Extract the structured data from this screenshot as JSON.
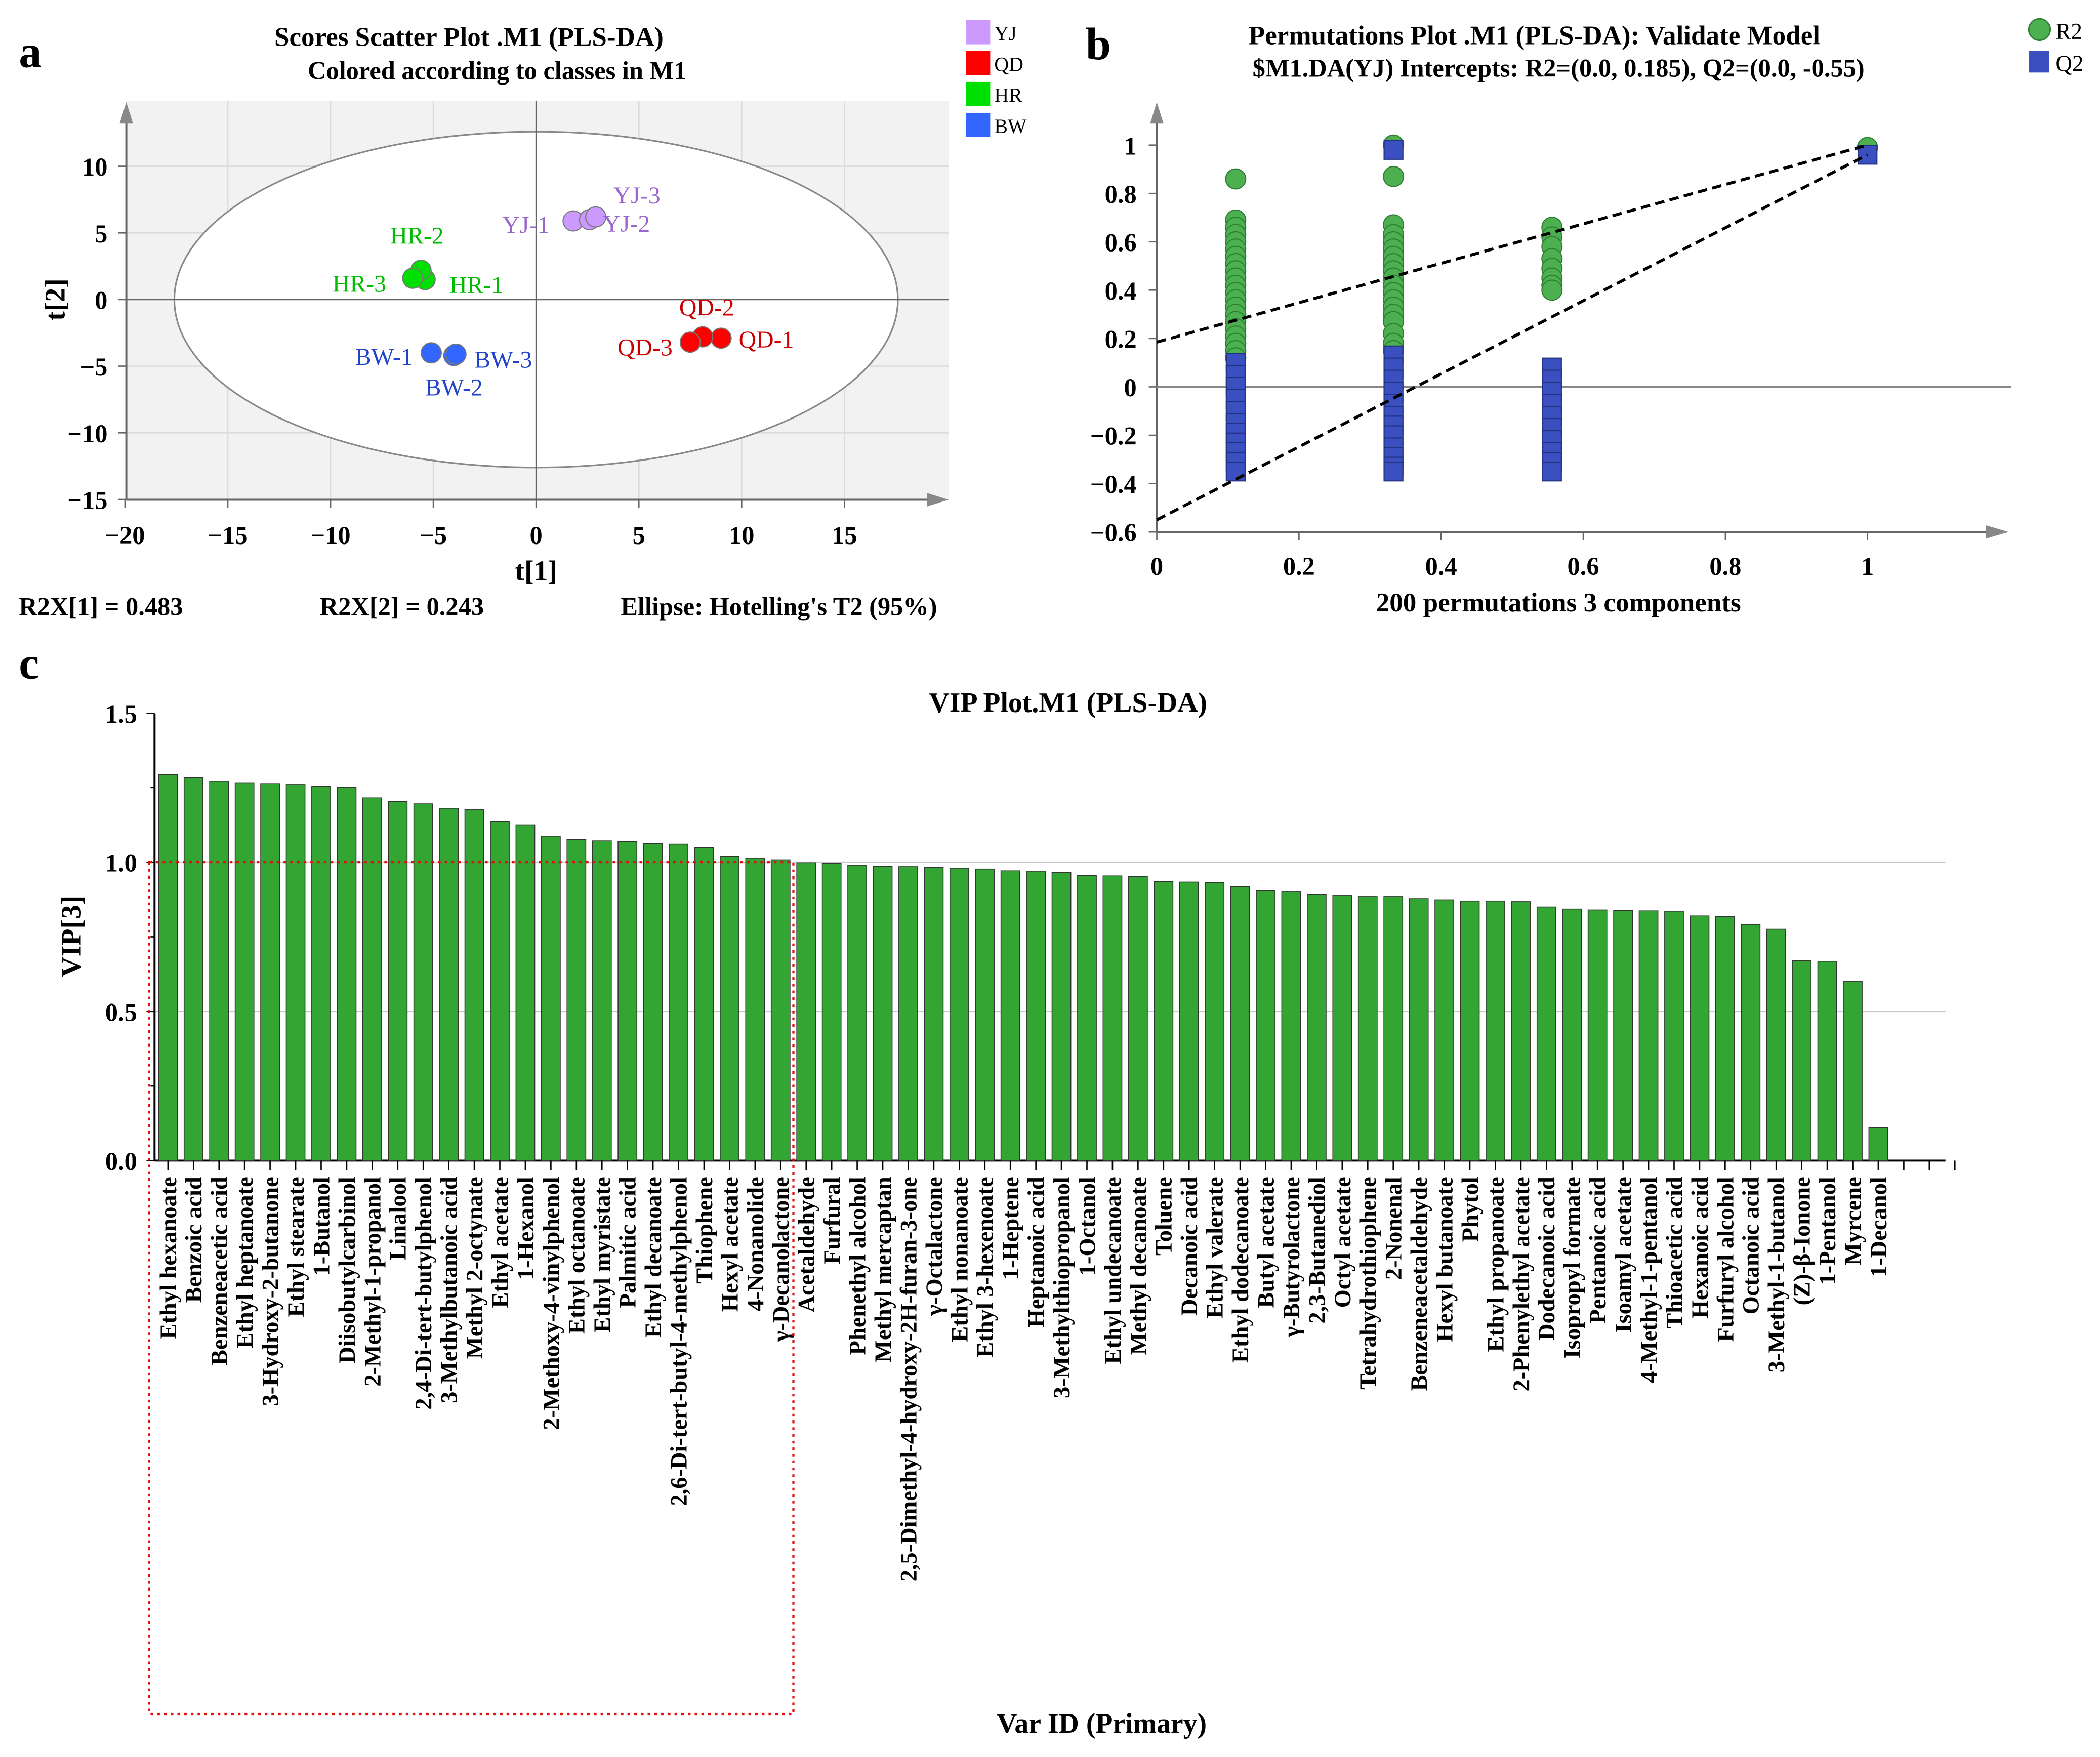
{
  "chart_data": [
    {
      "panel": "a",
      "type": "scatter",
      "title": "Scores Scatter Plot .M1 (PLS-DA)",
      "subtitle": "Colored according to classes in M1",
      "xlabel": "t[1]",
      "ylabel": "t[2]",
      "xlim": [
        -20,
        20
      ],
      "ylim": [
        -15,
        15
      ],
      "xticks": [
        -20,
        -15,
        -10,
        -5,
        0,
        5,
        10,
        15
      ],
      "yticks": [
        10,
        5,
        0,
        -5,
        -10,
        -15
      ],
      "xtick_labels": [
        "−20",
        "−15",
        "−10",
        "−5",
        "0",
        "5",
        "10",
        "15"
      ],
      "ytick_labels": [
        "10",
        "5",
        "0",
        "−5",
        "−10",
        "−15"
      ],
      "grid": true,
      "ellipse": {
        "label": "Ellipse: Hotelling's T2 (95%)",
        "rx": 17.6,
        "ry": 12.6
      },
      "footer": [
        "R2X[1] = 0.483",
        "R2X[2] = 0.243"
      ],
      "legend_position": "top-right",
      "legend": [
        {
          "name": "YJ",
          "color": "#cc99ff"
        },
        {
          "name": "QD",
          "color": "#ff0000"
        },
        {
          "name": "HR",
          "color": "#00e000"
        },
        {
          "name": "BW",
          "color": "#3366ff"
        }
      ],
      "label_colors": {
        "YJ": "#9966cc",
        "QD": "#cc0000",
        "HR": "#00bb00",
        "BW": "#2244cc"
      },
      "points": [
        {
          "label": "YJ-1",
          "cls": "YJ",
          "x": 1.8,
          "y": 5.9,
          "lx": -2.3,
          "ly": -0.3
        },
        {
          "label": "YJ-2",
          "cls": "YJ",
          "x": 2.6,
          "y": 6.0,
          "lx": 1.8,
          "ly": -0.3
        },
        {
          "label": "YJ-3",
          "cls": "YJ",
          "x": 2.9,
          "y": 6.2,
          "lx": 2.0,
          "ly": -0.4
        },
        {
          "label": "HR-1",
          "cls": "HR",
          "x": -5.4,
          "y": 1.5,
          "lx": 2.5,
          "ly": -0.4
        },
        {
          "label": "HR-2",
          "cls": "HR",
          "x": -5.6,
          "y": 2.2,
          "lx": -0.2,
          "ly": 2.6
        },
        {
          "label": "HR-3",
          "cls": "HR",
          "x": -6.0,
          "y": 1.6,
          "lx": -2.6,
          "ly": -0.4
        },
        {
          "label": "BW-1",
          "cls": "BW",
          "x": -5.1,
          "y": -4.0,
          "lx": -2.3,
          "ly": -0.3
        },
        {
          "label": "BW-2",
          "cls": "BW",
          "x": -4.0,
          "y": -4.2,
          "lx": 0.0,
          "ly": -2.4
        },
        {
          "label": "BW-3",
          "cls": "BW",
          "x": -3.9,
          "y": -4.1,
          "lx": 2.3,
          "ly": -0.4
        },
        {
          "label": "QD-1",
          "cls": "QD",
          "x": 9.0,
          "y": -2.9,
          "lx": 2.2,
          "ly": -0.1
        },
        {
          "label": "QD-2",
          "cls": "QD",
          "x": 8.1,
          "y": -2.8,
          "lx": 0.2,
          "ly": 2.2
        },
        {
          "label": "QD-3",
          "cls": "QD",
          "x": 7.5,
          "y": -3.2,
          "lx": -2.2,
          "ly": -0.4
        }
      ]
    },
    {
      "panel": "b",
      "type": "scatter",
      "title": "Permutations Plot .M1 (PLS-DA): Validate Model",
      "subtitle": "$M1.DA(YJ) Intercepts: R2=(0.0, 0.185), Q2=(0.0, -0.55)",
      "xlabel": "200 permutations 3 components",
      "xlim": [
        0,
        1.2
      ],
      "ylim": [
        -0.6,
        1.18
      ],
      "xticks": [
        0,
        0.2,
        0.4,
        0.6,
        0.8,
        1
      ],
      "xtick_labels": [
        "0",
        "0.2",
        "0.4",
        "0.6",
        "0.8",
        "1"
      ],
      "yticks": [
        1,
        0.8,
        0.6,
        0.4,
        0.2,
        0,
        -0.2,
        -0.4,
        -0.6
      ],
      "ytick_labels": [
        "1",
        "0.8",
        "0.6",
        "0.4",
        "0.2",
        "0",
        "−0.2",
        "−0.4",
        "−0.6"
      ],
      "legend_position": "top-right",
      "legend": [
        {
          "name": "R2",
          "color": "#4caf50",
          "marker": "circle"
        },
        {
          "name": "Q2",
          "color": "#3a4fc0",
          "marker": "square"
        }
      ],
      "intercepts": {
        "R2": [
          0.0,
          0.185
        ],
        "Q2": [
          0.0,
          -0.55
        ]
      },
      "regression_lines": [
        {
          "series": "R2",
          "from": [
            0,
            0.185
          ],
          "to": [
            1,
            1.0
          ]
        },
        {
          "series": "Q2",
          "from": [
            0,
            -0.55
          ],
          "to": [
            1,
            0.96
          ]
        }
      ],
      "series": [
        {
          "name": "R2",
          "groups": [
            {
              "x": 0.111,
              "y": [
                0.86,
                0.69,
                0.66,
                0.63,
                0.6,
                0.57,
                0.54,
                0.51,
                0.48,
                0.45,
                0.42,
                0.39,
                0.36,
                0.33,
                0.3,
                0.27,
                0.24,
                0.21,
                0.18,
                0.15,
                0.12
              ]
            },
            {
              "x": 0.333,
              "y": [
                1.0,
                0.87,
                0.67,
                0.63,
                0.6,
                0.57,
                0.54,
                0.51,
                0.48,
                0.45,
                0.42,
                0.39,
                0.36,
                0.33,
                0.3,
                0.27,
                0.22,
                0.18,
                0.15
              ]
            },
            {
              "x": 0.556,
              "y": [
                0.66,
                0.62,
                0.58,
                0.53,
                0.49,
                0.45,
                0.42,
                0.4
              ]
            },
            {
              "x": 1.0,
              "y": [
                0.99
              ]
            }
          ]
        },
        {
          "name": "Q2",
          "groups": [
            {
              "x": 0.111,
              "y": [
                0.1,
                0.05,
                0.0,
                -0.05,
                -0.1,
                -0.15,
                -0.19,
                -0.23,
                -0.27,
                -0.31,
                -0.35
              ]
            },
            {
              "x": 0.333,
              "y": [
                0.98,
                0.13,
                0.08,
                0.03,
                -0.02,
                -0.07,
                -0.12,
                -0.16,
                -0.2,
                -0.25,
                -0.29,
                -0.33,
                -0.35
              ]
            },
            {
              "x": 0.556,
              "y": [
                0.08,
                0.03,
                -0.02,
                -0.07,
                -0.12,
                -0.17,
                -0.22,
                -0.27,
                -0.31,
                -0.35
              ]
            },
            {
              "x": 1.0,
              "y": [
                0.96
              ]
            }
          ]
        }
      ]
    },
    {
      "panel": "c",
      "type": "bar",
      "title": "VIP Plot.M1 (PLS-DA)",
      "xlabel": "Var ID (Primary)",
      "ylabel": "VIP[3]",
      "ylim": [
        0,
        1.5
      ],
      "yticks": [
        0,
        0.5,
        1.0,
        1.5
      ],
      "ytick_labels": [
        "0.0",
        "0.5",
        "1.0",
        "1.5"
      ],
      "threshold": 1.0,
      "bar_color": "#33a532",
      "categories": [
        "Ethyl hexanoate",
        "Benzoic acid",
        "Benzeneacetic acid",
        "Ethyl heptanoate",
        "3-Hydroxy-2-butanone",
        "Ethyl stearate",
        "1-Butanol",
        "Diisobutylcarbinol",
        "2-Methyl-1-propanol",
        "Linalool",
        "2,4-Di-tert-butylphenol",
        "3-Methylbutanoic acid",
        "Methyl 2-octynate",
        "Ethyl acetate",
        "1-Hexanol",
        "2-Methoxy-4-vinylphenol",
        "Ethyl octanoate",
        "Ethyl myristate",
        "Palmitic acid",
        "Ethyl decanoate",
        "2,6-Di-tert-butyl-4-methylphenol",
        "Thiophene",
        "Hexyl acetate",
        "4-Nonanolide",
        "γ-Decanolactone",
        "Acetaldehyde",
        "Furfural",
        "Phenethyl alcohol",
        "Methyl mercaptan",
        "2,5-Dimethyl-4-hydroxy-2H-furan-3-one",
        "γ-Octalactone",
        "Ethyl nonanoate",
        "Ethyl 3-hexenoate",
        "1-Heptene",
        "Heptanoic acid",
        "3-Methylthiopropanol",
        "1-Octanol",
        "Ethyl undecanoate",
        "Methyl decanoate",
        "Toluene",
        "Decanoic acid",
        "Ethyl valerate",
        "Ethyl dodecanoate",
        "Butyl acetate",
        "γ-Butyrolactone",
        "2,3-Butanediol",
        "Octyl acetate",
        "Tetrahydrothiophene",
        "2-Nonenal",
        "Benzeneacetaldehyde",
        "Hexyl butanoate",
        "Phytol",
        "Ethyl propanoate",
        "2-Phenylethyl acetate",
        "Dodecanoic acid",
        "Isopropyl formate",
        "Pentanoic acid",
        "Isoamyl acetate",
        "4-Methyl-1-pentanol",
        "Thioacetic acid",
        "Hexanoic acid",
        "Furfuryl alcohol",
        "Octanoic acid",
        "3-Methyl-1-butanol",
        "(Z)-β-Ionone",
        "1-Pentanol",
        "Myrcene",
        "1-Decanol"
      ],
      "values": [
        1.295,
        1.285,
        1.272,
        1.266,
        1.263,
        1.26,
        1.254,
        1.25,
        1.217,
        1.205,
        1.197,
        1.182,
        1.177,
        1.137,
        1.125,
        1.087,
        1.077,
        1.073,
        1.071,
        1.064,
        1.062,
        1.05,
        1.02,
        1.014,
        1.008,
        0.998,
        0.996,
        0.99,
        0.986,
        0.985,
        0.982,
        0.98,
        0.977,
        0.971,
        0.97,
        0.966,
        0.955,
        0.954,
        0.952,
        0.937,
        0.935,
        0.933,
        0.92,
        0.906,
        0.902,
        0.892,
        0.89,
        0.885,
        0.885,
        0.878,
        0.874,
        0.87,
        0.87,
        0.868,
        0.85,
        0.843,
        0.84,
        0.838,
        0.837,
        0.836,
        0.82,
        0.818,
        0.793,
        0.777,
        0.67,
        0.668,
        0.6,
        0.11
      ]
    }
  ],
  "panel_labels": [
    "a",
    "b",
    "c"
  ]
}
